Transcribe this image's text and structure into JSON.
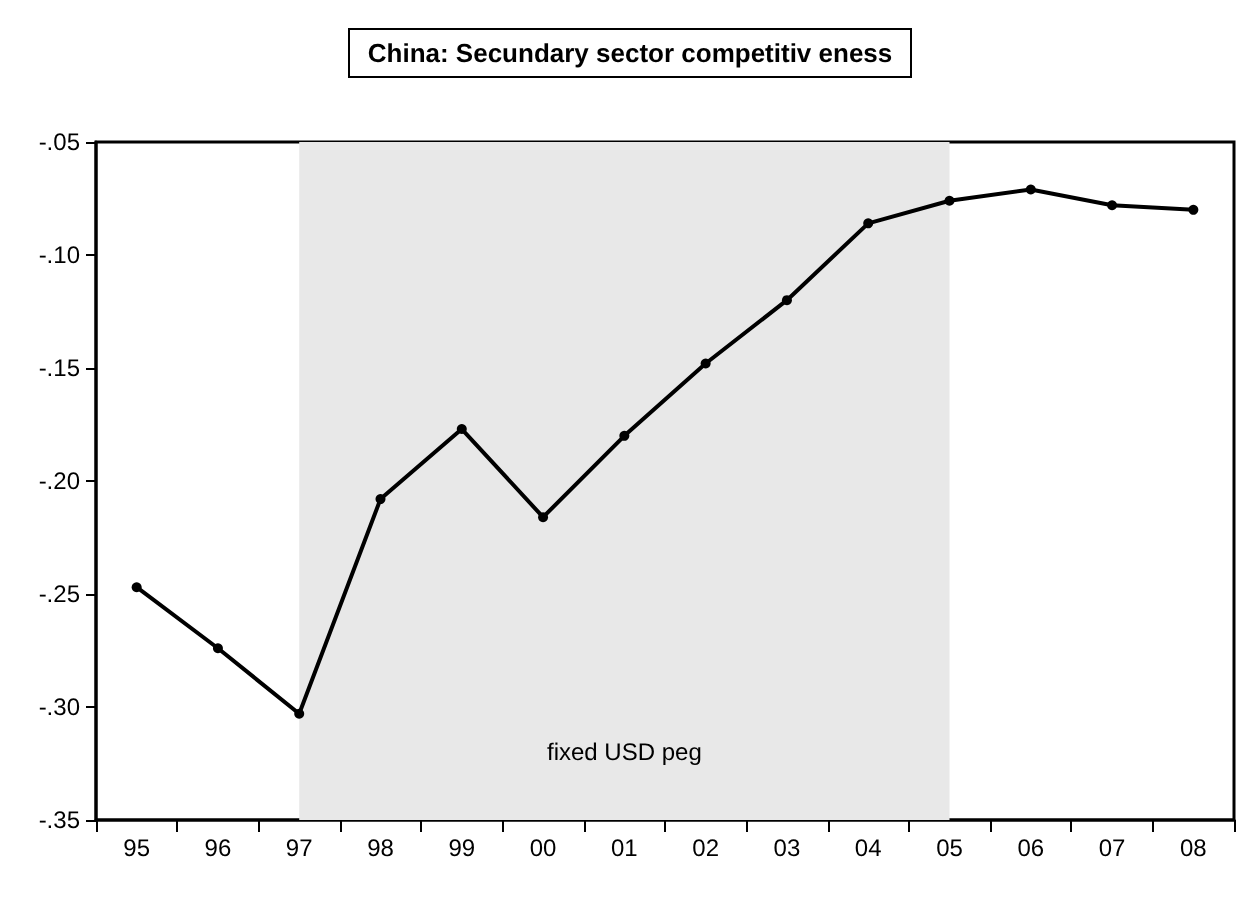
{
  "chart_data": {
    "type": "line",
    "title": "China: Secundary sector competitiv eness",
    "categories": [
      "95",
      "96",
      "97",
      "98",
      "99",
      "00",
      "01",
      "02",
      "03",
      "04",
      "05",
      "06",
      "07",
      "08"
    ],
    "series": [
      {
        "color": "#000000",
        "values": [
          -0.247,
          -0.274,
          -0.303,
          -0.208,
          -0.177,
          -0.216,
          -0.18,
          -0.148,
          -0.12,
          -0.086,
          -0.076,
          -0.071,
          -0.078,
          -0.08
        ]
      }
    ],
    "ylim": [
      -0.35,
      -0.05
    ],
    "yticks": [
      {
        "value": -0.35,
        "label": "-.35"
      },
      {
        "value": -0.3,
        "label": "-.30"
      },
      {
        "value": -0.25,
        "label": "-.25"
      },
      {
        "value": -0.2,
        "label": "-.20"
      },
      {
        "value": -0.15,
        "label": "-.15"
      },
      {
        "value": -0.1,
        "label": "-.10"
      },
      {
        "value": -0.05,
        "label": "-.05"
      }
    ],
    "bands": [
      {
        "axis": "x",
        "from": "97",
        "to": "05",
        "label": "fixed USD peg",
        "color": "#e8e8e8"
      }
    ],
    "grid": false,
    "marker": "circle",
    "line_style": "solid"
  }
}
